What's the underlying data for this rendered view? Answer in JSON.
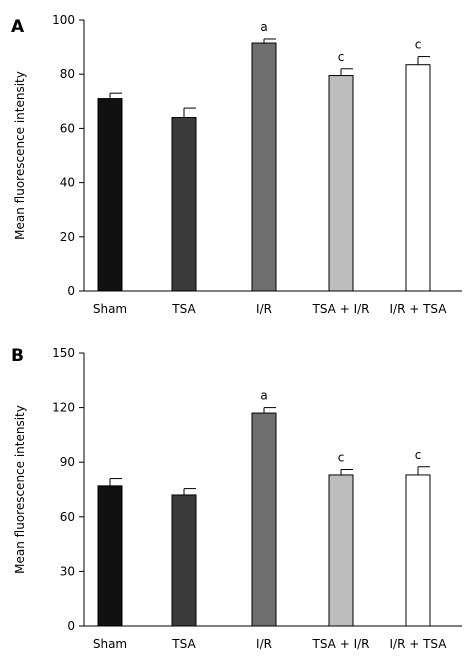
{
  "chart_data": [
    {
      "panel": "A",
      "type": "bar",
      "ylabel": "Mean fluorescence intensity",
      "xlabel": "",
      "ylim": [
        0,
        100
      ],
      "yticks": [
        0,
        20,
        40,
        60,
        80,
        100
      ],
      "categories": [
        "Sham",
        "TSA",
        "I/R",
        "TSA + I/R",
        "I/R + TSA"
      ],
      "values": [
        71,
        64,
        91.5,
        79.5,
        83.5
      ],
      "errors": [
        2,
        3.5,
        1.5,
        2.5,
        3
      ],
      "sig_labels": [
        "",
        "",
        "a",
        "c",
        "c"
      ],
      "bar_colors": [
        "#111111",
        "#3a3a3a",
        "#6e6e6e",
        "#bdbdbd",
        "#ffffff"
      ],
      "grid": false,
      "legend": "none"
    },
    {
      "panel": "B",
      "type": "bar",
      "ylabel": "Mean fluorescence intensity",
      "xlabel": "",
      "ylim": [
        0,
        150
      ],
      "yticks": [
        0,
        30,
        60,
        90,
        120,
        150
      ],
      "categories": [
        "Sham",
        "TSA",
        "I/R",
        "TSA + I/R",
        "I/R + TSA"
      ],
      "values": [
        77,
        72,
        117,
        83,
        83
      ],
      "errors": [
        4,
        3.5,
        3,
        3,
        4.5
      ],
      "sig_labels": [
        "",
        "",
        "a",
        "c",
        "c"
      ],
      "bar_colors": [
        "#111111",
        "#3a3a3a",
        "#6e6e6e",
        "#bdbdbd",
        "#ffffff"
      ],
      "grid": false,
      "legend": "none"
    }
  ]
}
